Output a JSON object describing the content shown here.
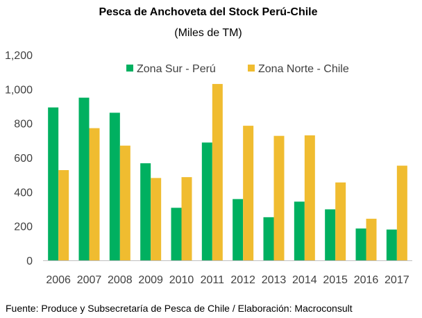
{
  "chart_data": {
    "type": "bar",
    "title": "Pesca de Anchoveta del Stock Perú-Chile",
    "subtitle": "(Miles de TM)",
    "xlabel": "",
    "ylabel": "",
    "ylim": [
      0,
      1200
    ],
    "yticks": [
      "0",
      "200",
      "400",
      "600",
      "800",
      "1,000",
      "1,200"
    ],
    "categories": [
      "2006",
      "2007",
      "2008",
      "2009",
      "2010",
      "2011",
      "2012",
      "2013",
      "2014",
      "2015",
      "2016",
      "2017"
    ],
    "series": [
      {
        "name": "Zona Sur - Perú",
        "color": "#00b060",
        "values": [
          893,
          950,
          862,
          567,
          307,
          688,
          358,
          252,
          343,
          298,
          186,
          180
        ]
      },
      {
        "name": "Zona Norte - Chile",
        "color": "#f0bc30",
        "values": [
          527,
          772,
          670,
          481,
          486,
          1030,
          786,
          727,
          730,
          455,
          243,
          553
        ]
      }
    ],
    "legend": "top-right",
    "grid": false
  },
  "source": "Fuente: Produce y Subsecretaría de Pesca de Chile / Elaboración: Macroconsult"
}
